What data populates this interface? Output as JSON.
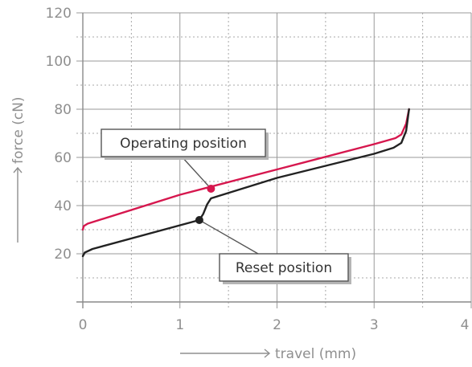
{
  "chart_data": {
    "type": "line",
    "xlabel": "travel (mm)",
    "ylabel": "force (cN)",
    "xlim": [
      0,
      4
    ],
    "ylim": [
      0,
      120
    ],
    "x_ticks": [
      "0",
      "1",
      "2",
      "3",
      "4"
    ],
    "y_ticks": [
      "20",
      "40",
      "60",
      "80",
      "100",
      "120"
    ],
    "x_tick_values": [
      0,
      1,
      2,
      3,
      4
    ],
    "y_tick_values": [
      20,
      40,
      60,
      80,
      100,
      120
    ],
    "x_minor_step": 0.5,
    "y_minor_step": 10,
    "grid": true,
    "series": [
      {
        "color": "#d6174e",
        "points": [
          [
            0,
            30
          ],
          [
            0.01,
            31.5
          ],
          [
            0.05,
            32.5
          ],
          [
            1.0,
            44.5
          ],
          [
            2.0,
            55
          ],
          [
            3.0,
            65.5
          ],
          [
            3.22,
            68
          ],
          [
            3.28,
            69.5
          ],
          [
            3.33,
            74
          ],
          [
            3.36,
            80
          ]
        ]
      },
      {
        "color": "#222222",
        "points": [
          [
            0,
            19
          ],
          [
            0.02,
            20.5
          ],
          [
            0.1,
            22
          ],
          [
            1.2,
            34
          ],
          [
            1.24,
            36.5
          ],
          [
            1.28,
            40.5
          ],
          [
            1.32,
            43
          ],
          [
            1.4,
            44
          ],
          [
            2.0,
            51.5
          ],
          [
            3.0,
            61.5
          ],
          [
            3.2,
            64
          ],
          [
            3.28,
            66
          ],
          [
            3.33,
            71
          ],
          [
            3.36,
            80
          ]
        ]
      }
    ],
    "annotations": [
      {
        "text": "Operating position",
        "point": [
          1.32,
          47
        ],
        "color": "#d6174e"
      },
      {
        "text": "Reset position",
        "point": [
          1.2,
          34
        ],
        "color": "#222222"
      }
    ]
  }
}
